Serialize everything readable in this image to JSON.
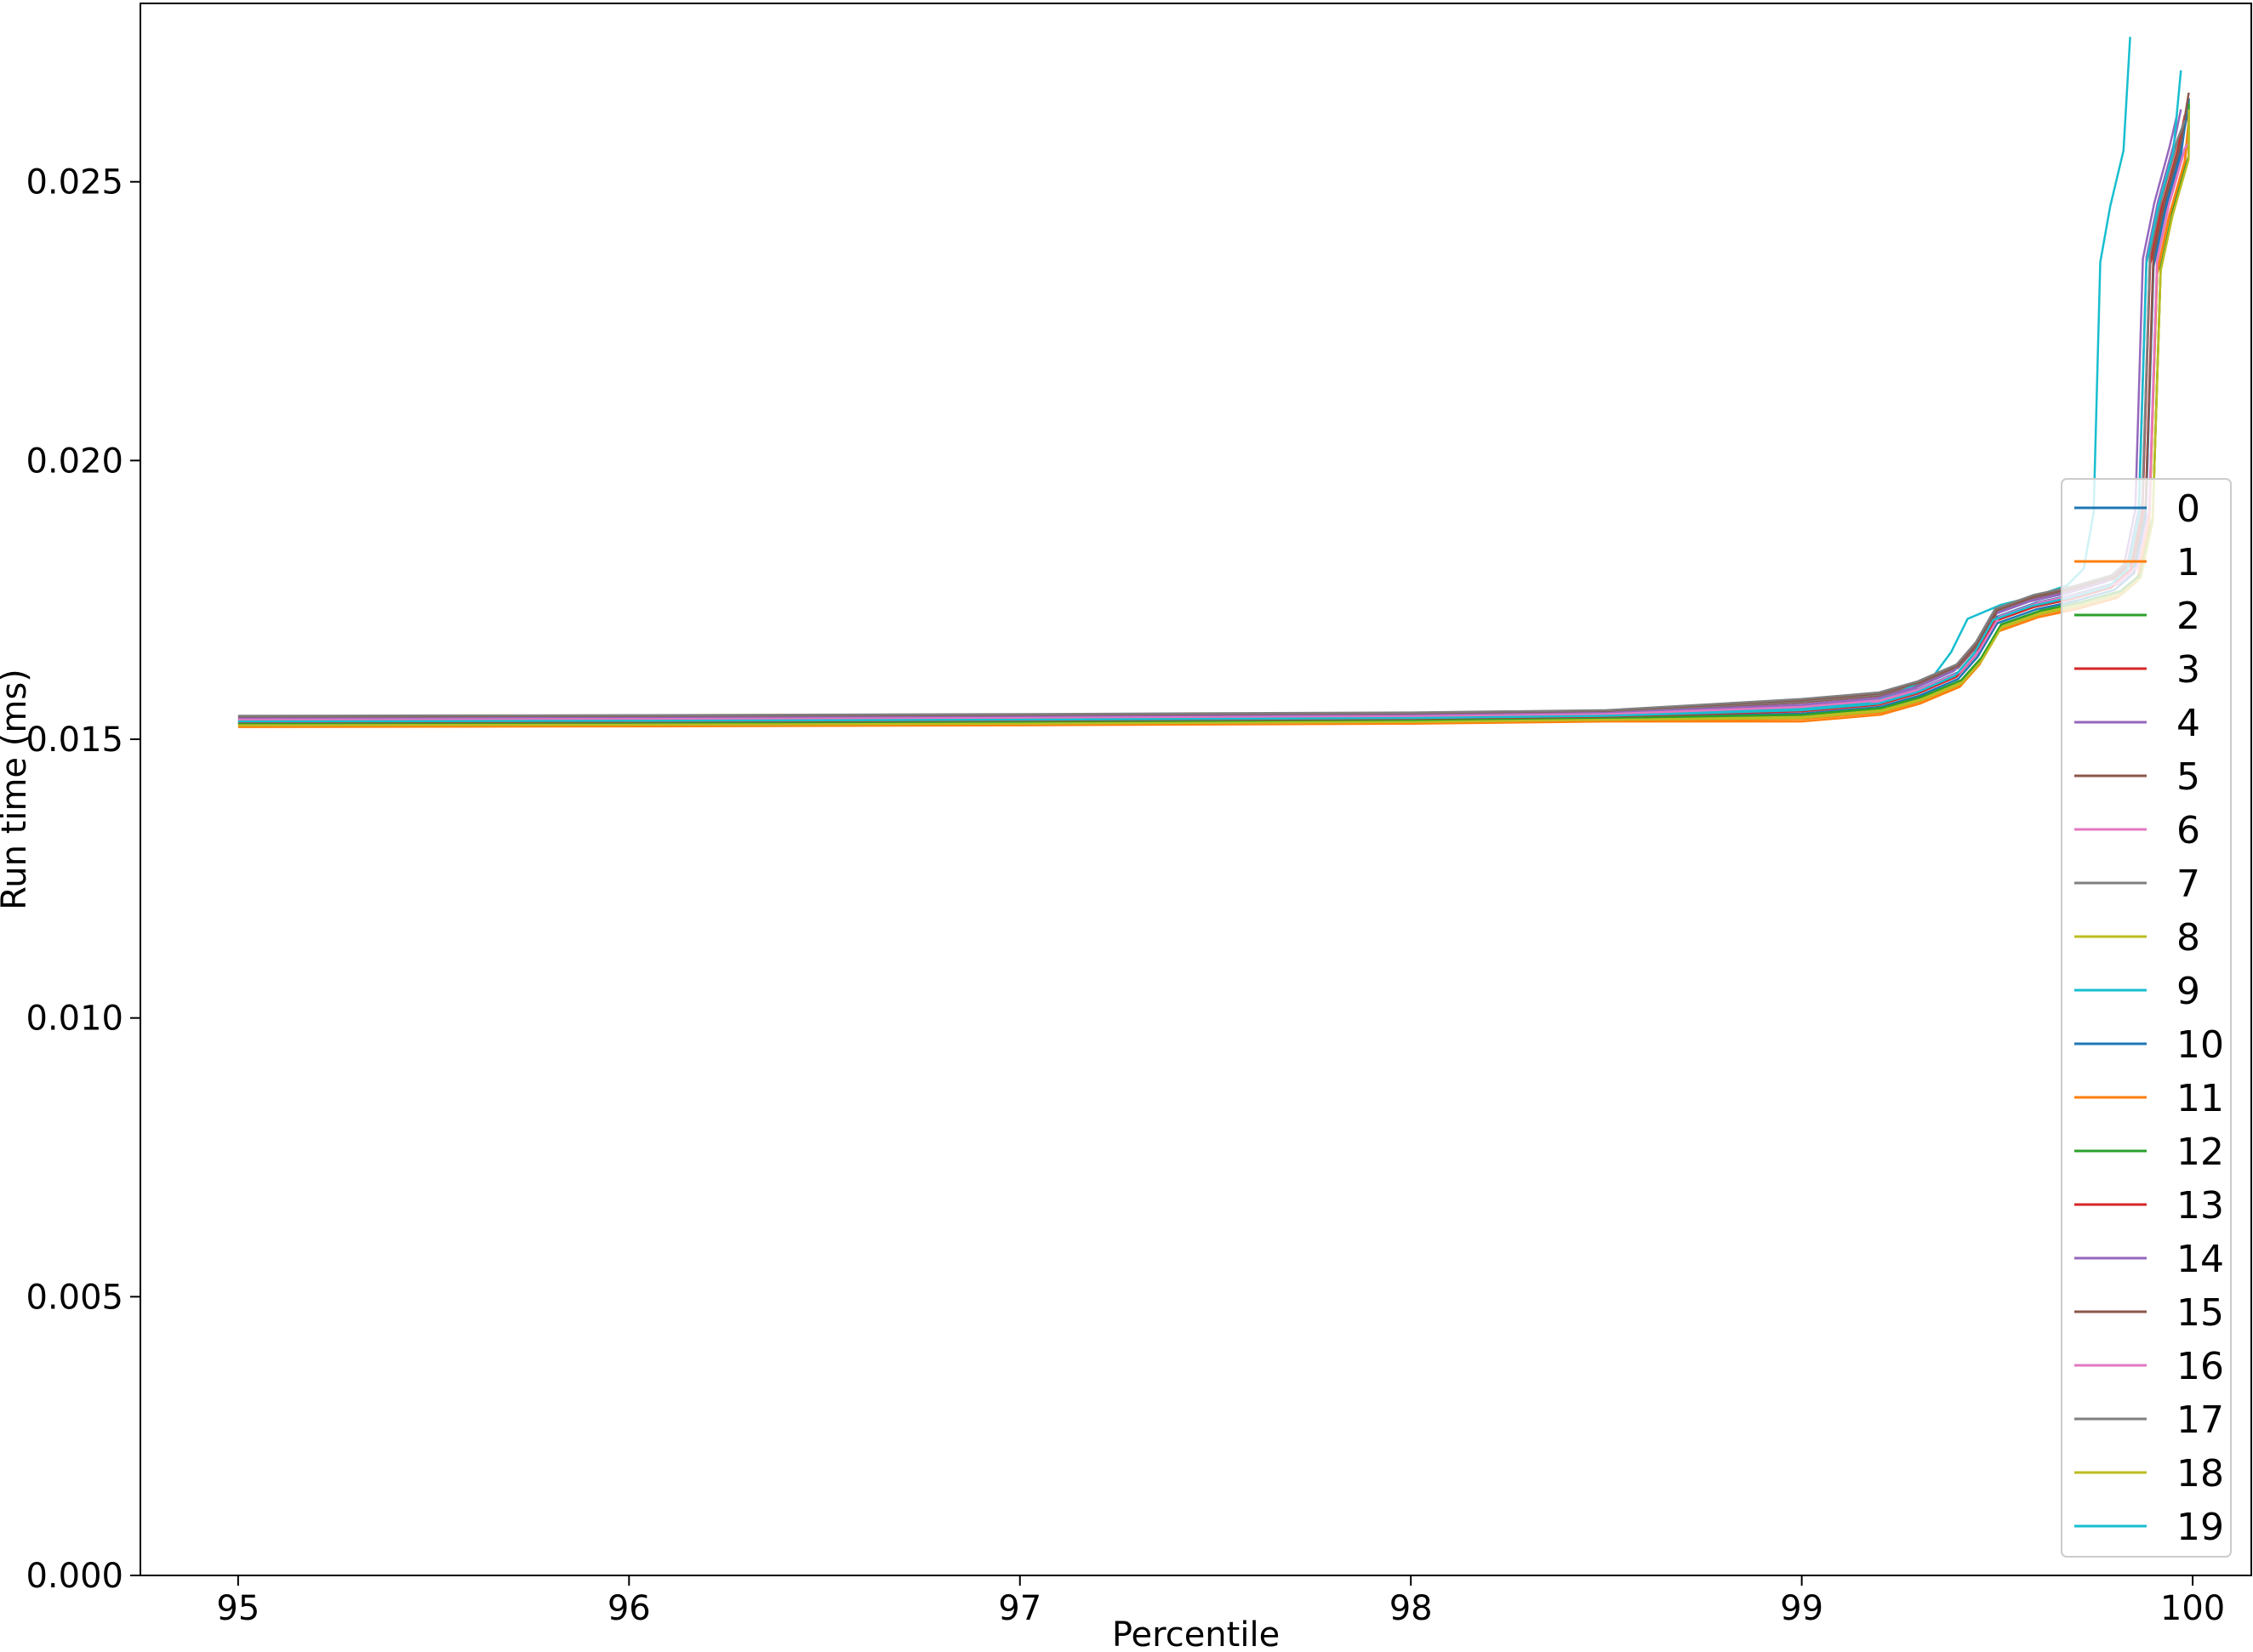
{
  "chart_data": {
    "type": "line",
    "title": "",
    "xlabel": "Percentile",
    "ylabel": "Run time (ms)",
    "xlim": [
      94.75,
      100.15
    ],
    "ylim": [
      0.0,
      0.0282
    ],
    "xticks": [
      95,
      96,
      97,
      98,
      99,
      100
    ],
    "xtick_labels": [
      "95",
      "96",
      "97",
      "98",
      "99",
      "100"
    ],
    "yticks": [
      0.0,
      0.005,
      0.01,
      0.015,
      0.02,
      0.025
    ],
    "ytick_labels": [
      "0.000",
      "0.005",
      "0.010",
      "0.015",
      "0.020",
      "0.025"
    ],
    "grid": false,
    "legend": {
      "placement": "lower-right"
    },
    "series_base": {
      "x": [
        95.0,
        96.0,
        97.0,
        98.0,
        98.5,
        99.0,
        99.2,
        99.3,
        99.4,
        99.45,
        99.5,
        99.6,
        99.7,
        99.8,
        99.85,
        99.88,
        99.9,
        99.93,
        99.95,
        99.97,
        99.99
      ],
      "y": [
        0.0153,
        0.01531,
        0.01533,
        0.01536,
        0.0154,
        0.01548,
        0.0156,
        0.0158,
        0.0161,
        0.0165,
        0.0171,
        0.01735,
        0.0175,
        0.0177,
        0.018,
        0.019,
        0.0235,
        0.0245,
        0.025,
        0.0255,
        0.0262
      ]
    },
    "series": [
      {
        "name": "0",
        "color": "#1f77b4",
        "offset": 5e-05,
        "jump_shift": 0.0,
        "peak": 0.0264
      },
      {
        "name": "1",
        "color": "#ff7f0e",
        "offset": -8e-05,
        "jump_shift": 0.01,
        "peak": 0.026
      },
      {
        "name": "2",
        "color": "#2ca02c",
        "offset": -3e-05,
        "jump_shift": 0.02,
        "peak": 0.0265
      },
      {
        "name": "3",
        "color": "#d62728",
        "offset": 2e-05,
        "jump_shift": -0.01,
        "peak": 0.0261
      },
      {
        "name": "4",
        "color": "#9467bd",
        "offset": 6e-05,
        "jump_shift": -0.03,
        "peak": 0.0262
      },
      {
        "name": "5",
        "color": "#8c564b",
        "offset": 9e-05,
        "jump_shift": 0.0,
        "peak": 0.0263
      },
      {
        "name": "6",
        "color": "#e377c2",
        "offset": 4e-05,
        "jump_shift": 0.01,
        "peak": 0.0258
      },
      {
        "name": "7",
        "color": "#7f7f7f",
        "offset": 0.0001,
        "jump_shift": -0.01,
        "peak": 0.026
      },
      {
        "name": "8",
        "color": "#bcbd22",
        "offset": -4e-05,
        "jump_shift": 0.02,
        "peak": 0.0259
      },
      {
        "name": "9",
        "color": "#17becf",
        "offset": 3e-05,
        "jump_shift": -0.15,
        "peak": 0.0276
      },
      {
        "name": "10",
        "color": "#1f77b4",
        "offset": -1e-05,
        "jump_shift": 0.0,
        "peak": 0.0265
      },
      {
        "name": "11",
        "color": "#ff7f0e",
        "offset": -6e-05,
        "jump_shift": 0.01,
        "peak": 0.0261
      },
      {
        "name": "12",
        "color": "#2ca02c",
        "offset": -2e-05,
        "jump_shift": 0.02,
        "peak": 0.0264
      },
      {
        "name": "13",
        "color": "#d62728",
        "offset": 1e-05,
        "jump_shift": -0.01,
        "peak": 0.0262
      },
      {
        "name": "14",
        "color": "#9467bd",
        "offset": 7e-05,
        "jump_shift": -0.02,
        "peak": 0.0263
      },
      {
        "name": "15",
        "color": "#8c564b",
        "offset": 0.00011,
        "jump_shift": 0.0,
        "peak": 0.0266
      },
      {
        "name": "16",
        "color": "#e377c2",
        "offset": 5e-05,
        "jump_shift": 0.01,
        "peak": 0.0257
      },
      {
        "name": "17",
        "color": "#7f7f7f",
        "offset": 0.00012,
        "jump_shift": -0.01,
        "peak": 0.0261
      },
      {
        "name": "18",
        "color": "#bcbd22",
        "offset": -5e-05,
        "jump_shift": 0.02,
        "peak": 0.0263
      },
      {
        "name": "19",
        "color": "#17becf",
        "offset": 2e-05,
        "jump_shift": -0.02,
        "peak": 0.027
      }
    ]
  }
}
